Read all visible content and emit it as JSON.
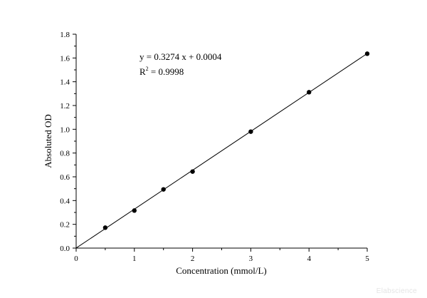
{
  "chart_data": {
    "type": "scatter",
    "xlabel": "Concentration (mmol/L)",
    "ylabel": "Absoluted OD",
    "xlim": [
      0,
      5
    ],
    "ylim": [
      0,
      1.8
    ],
    "x_ticks": [
      "0",
      "1",
      "2",
      "3",
      "4",
      "5"
    ],
    "y_ticks": [
      "0.0",
      "0.2",
      "0.4",
      "0.6",
      "0.8",
      "1.0",
      "1.2",
      "1.4",
      "1.6",
      "1.8"
    ],
    "x_tick_values": [
      0,
      1,
      2,
      3,
      4,
      5
    ],
    "y_tick_values": [
      0,
      0.2,
      0.4,
      0.6,
      0.8,
      1.0,
      1.2,
      1.4,
      1.6,
      1.8
    ],
    "grid": false,
    "points": [
      {
        "x": 0.5,
        "y": 0.172
      },
      {
        "x": 1.0,
        "y": 0.316
      },
      {
        "x": 1.5,
        "y": 0.494
      },
      {
        "x": 2.0,
        "y": 0.644
      },
      {
        "x": 3.0,
        "y": 0.98
      },
      {
        "x": 4.0,
        "y": 1.312
      },
      {
        "x": 5.0,
        "y": 1.636
      }
    ],
    "fit": {
      "slope": 0.3274,
      "intercept": 0.0004,
      "x_range": [
        0,
        5
      ],
      "equation": "y = 0.3274 x + 0.0004",
      "r2_prefix": "R",
      "r2_sup": "2",
      "r2_value": " = 0.9998"
    }
  },
  "watermark": "Elabscience"
}
